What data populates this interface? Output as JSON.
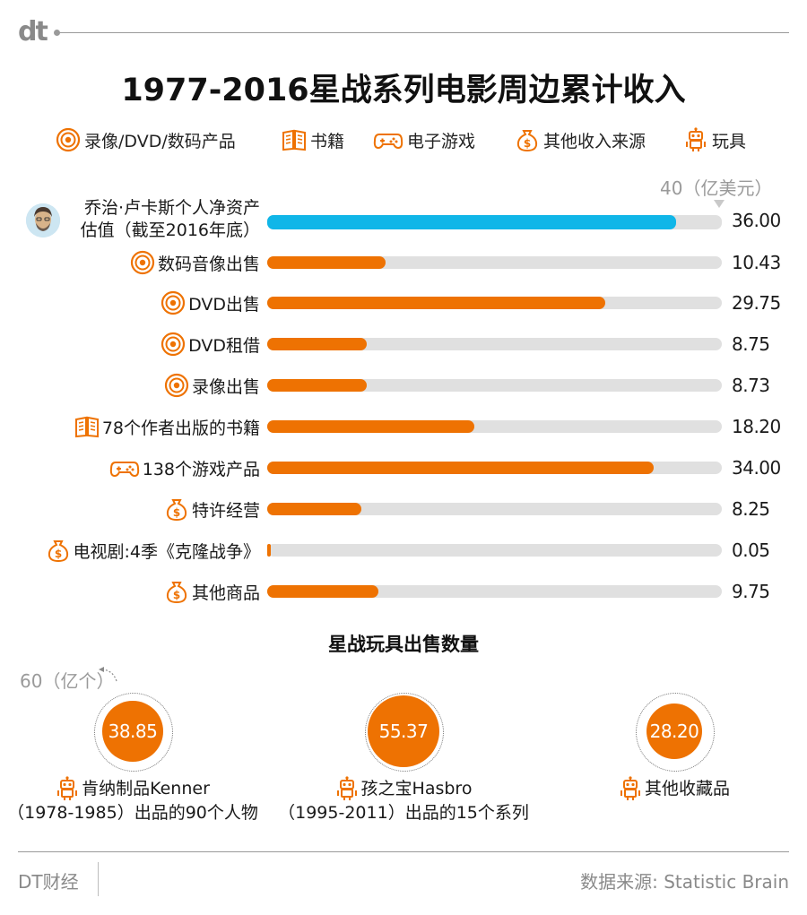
{
  "brand": {
    "logo_text": "dt",
    "footer_brand": "DT财经",
    "source": "数据来源: Statistic Brain"
  },
  "title": "1977-2016星战系列电影周边累计收入",
  "colors": {
    "accent": "#ee7202",
    "highlight": "#10b6e8",
    "track": "#e0e0e0",
    "muted": "#9a9a9a"
  },
  "legend": [
    {
      "icon": "disc-icon",
      "label": "录像/DVD/数码产品"
    },
    {
      "icon": "book-icon",
      "label": "书籍"
    },
    {
      "icon": "gamepad-icon",
      "label": "电子游戏"
    },
    {
      "icon": "money-bag-icon",
      "label": "其他收入来源"
    },
    {
      "icon": "robot-icon",
      "label": "玩具"
    }
  ],
  "axis_max_label": "40（亿美元）",
  "toys": {
    "title": "星战玩具出售数量",
    "axis_max_label": "60（亿个）"
  },
  "chart_data": [
    {
      "type": "bar",
      "title": "1977-2016星战系列电影周边累计收入",
      "unit": "亿美元",
      "xlim": [
        0,
        40
      ],
      "categories": [
        "乔治·卢卡斯个人净资产估值（截至2016年底）",
        "数码音像出售",
        "DVD出售",
        "DVD租借",
        "录像出售",
        "78个作者出版的书籍",
        "138个游戏产品",
        "特许经营",
        "电视剧:4季《克隆战争》",
        "其他商品"
      ],
      "label_lines": [
        [
          "乔治·卢卡斯个人净资产",
          "估值（截至2016年底）"
        ],
        [
          "数码音像出售"
        ],
        [
          "DVD出售"
        ],
        [
          "DVD租借"
        ],
        [
          "录像出售"
        ],
        [
          "78个作者出版的书籍"
        ],
        [
          "138个游戏产品"
        ],
        [
          "特许经营"
        ],
        [
          "电视剧:4季《克隆战争》"
        ],
        [
          "其他商品"
        ]
      ],
      "values": [
        36.0,
        10.43,
        29.75,
        8.75,
        8.73,
        18.2,
        34.0,
        8.25,
        0.05,
        9.75
      ],
      "value_labels": [
        "36.00",
        "10.43",
        "29.75",
        "8.75",
        "8.73",
        "18.20",
        "34.00",
        "8.25",
        "0.05",
        "9.75"
      ],
      "icons": [
        "avatar",
        "disc-icon",
        "disc-icon",
        "disc-icon",
        "disc-icon",
        "book-icon",
        "gamepad-icon",
        "money-bag-icon",
        "money-bag-icon",
        "money-bag-icon"
      ]
    },
    {
      "type": "bubble",
      "title": "星战玩具出售数量",
      "unit": "亿个",
      "max": 60,
      "items": [
        {
          "value": 38.85,
          "value_label": "38.85",
          "line1": "肯纳制品Kenner",
          "line2": "（1978-1985）出品的90个人物"
        },
        {
          "value": 55.37,
          "value_label": "55.37",
          "line1": "孩之宝Hasbro",
          "line2": "（1995-2011）出品的15个系列"
        },
        {
          "value": 28.2,
          "value_label": "28.20",
          "line1": "其他收藏品",
          "line2": ""
        }
      ]
    }
  ]
}
